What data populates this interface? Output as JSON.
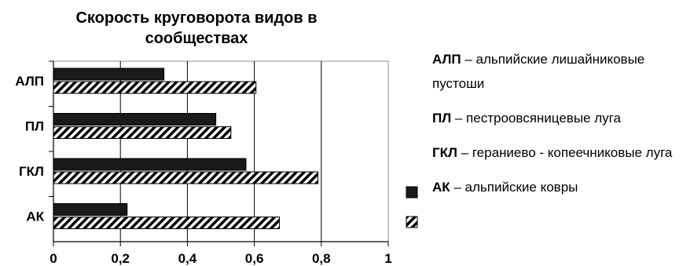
{
  "chart_data": {
    "type": "bar",
    "orientation": "horizontal",
    "title": "Скорость круговорота видов в\nсообществах",
    "categories": [
      "АЛП",
      "ПЛ",
      "ГКЛ",
      "АК"
    ],
    "series": [
      {
        "pattern": "solid",
        "color": "#1a1a1a",
        "values": [
          0.33,
          0.485,
          0.575,
          0.22
        ]
      },
      {
        "pattern": "diagonal-hatch",
        "color": "#000000",
        "values": [
          0.605,
          0.53,
          0.79,
          0.675
        ]
      }
    ],
    "xlim": [
      0,
      1
    ],
    "xticks": [
      "0",
      "0,2",
      "0,4",
      "0,6",
      "0,8",
      "1"
    ],
    "xgrid": true,
    "legend": [
      {
        "abbr": "АЛП",
        "text": " – альпийские лишайниковые пустоши"
      },
      {
        "abbr": "ПЛ",
        "text": " – пестроовсяницевые луга"
      },
      {
        "abbr": "ГКЛ",
        "text": " – гераниево - копеечниковые луга"
      },
      {
        "abbr": "АК",
        "text": " – альпийские ковры"
      }
    ]
  }
}
